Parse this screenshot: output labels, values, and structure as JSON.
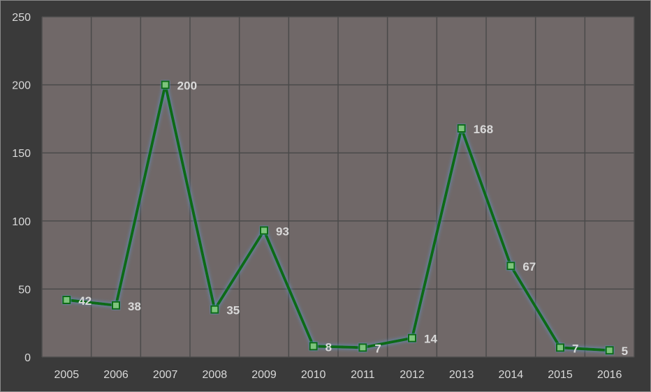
{
  "colors": {
    "background": "#3a3a3a",
    "plot_area": "#706868",
    "grid": "#4a4a4a",
    "line": "#0e6b14",
    "marker_fill": "#7dc47d",
    "glow": "#5b9bd5",
    "text": "#d9d9d9"
  },
  "chart_data": {
    "type": "line",
    "categories": [
      "2005",
      "2006",
      "2007",
      "2008",
      "2009",
      "2010",
      "2011",
      "2012",
      "2013",
      "2014",
      "2015",
      "2016"
    ],
    "series": [
      {
        "values": [
          42,
          38,
          200,
          35,
          93,
          8,
          7,
          14,
          168,
          67,
          7,
          5
        ],
        "data_labels": [
          "42",
          "38",
          "200",
          "35",
          "93",
          "8",
          "7",
          "14",
          "168",
          "67",
          "7",
          "5"
        ],
        "marker": "square"
      }
    ],
    "title": "",
    "xlabel": "",
    "ylabel": "",
    "ylim": [
      0,
      250
    ],
    "yticks": [
      0,
      50,
      100,
      150,
      200,
      250
    ],
    "ytick_labels": [
      "0",
      "50",
      "100",
      "150",
      "200",
      "250"
    ],
    "grid": true,
    "legend": "none"
  }
}
